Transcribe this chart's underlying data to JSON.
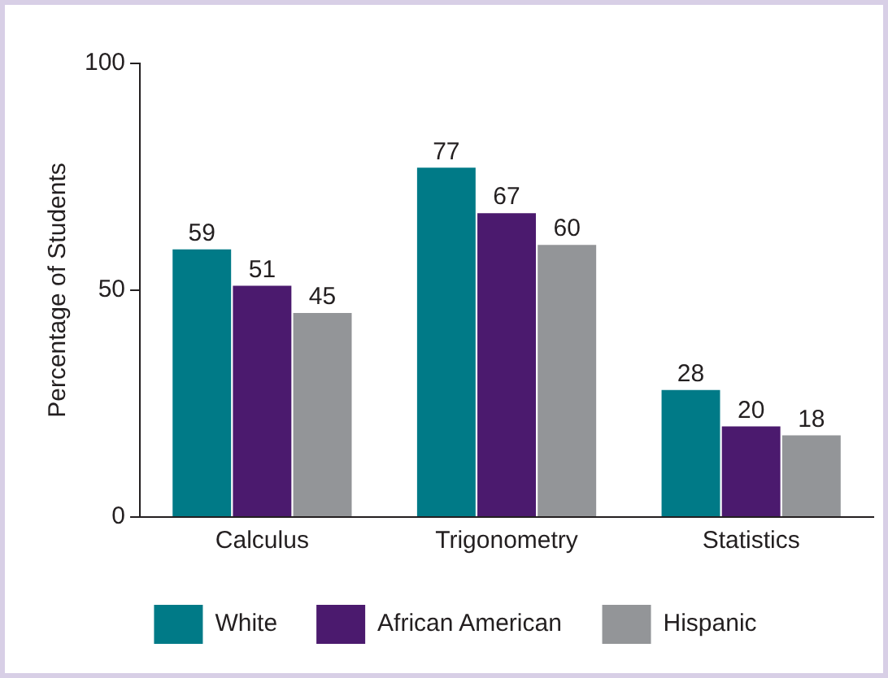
{
  "chart_data": {
    "type": "bar",
    "ylabel": "Percentage of Students",
    "categories": [
      "Calculus",
      "Trigonometry",
      "Statistics"
    ],
    "series": [
      {
        "name": "White",
        "color": "#007a87",
        "values": [
          59,
          77,
          28
        ]
      },
      {
        "name": "African American",
        "color": "#4b1a6e",
        "values": [
          51,
          67,
          20
        ]
      },
      {
        "name": "Hispanic",
        "color": "#939598",
        "values": [
          45,
          60,
          18
        ]
      }
    ],
    "ylim": [
      0,
      100
    ],
    "yticks": [
      0,
      50,
      100
    ],
    "grid": false,
    "legend": "bottom",
    "data_labels": true
  }
}
